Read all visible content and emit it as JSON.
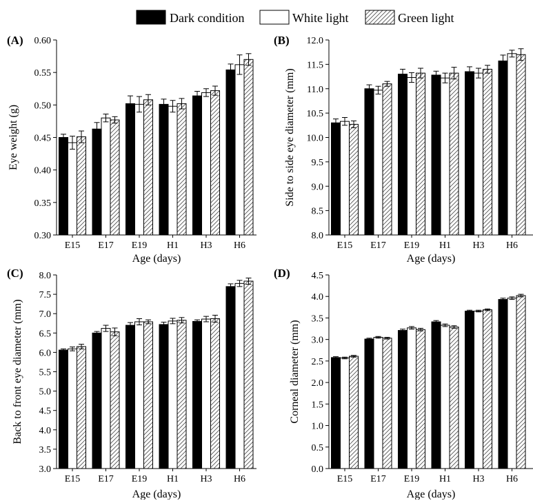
{
  "legend": {
    "items": [
      {
        "name": "Dark condition",
        "style": "solid"
      },
      {
        "name": "White light",
        "style": "hollow"
      },
      {
        "name": "Green light",
        "style": "hatched"
      }
    ]
  },
  "colors": {
    "dark": "#000000",
    "white": "#ffffff",
    "hatch": "#555555",
    "axis": "#000000"
  },
  "chart_data": [
    {
      "type": "bar",
      "panel_label": "(A)",
      "xlabel": "Age (days)",
      "ylabel": "Eye weight (g)",
      "categories": [
        "E15",
        "E17",
        "E19",
        "H1",
        "H3",
        "H6"
      ],
      "ylim": [
        0.3,
        0.6
      ],
      "yticks": [
        "0.30",
        "0.35",
        "0.40",
        "0.45",
        "0.50",
        "0.55",
        "0.60"
      ],
      "series": [
        {
          "name": "Dark condition",
          "values": [
            0.45,
            0.463,
            0.502,
            0.501,
            0.514,
            0.554
          ],
          "errors": [
            0.005,
            0.01,
            0.012,
            0.008,
            0.007,
            0.009
          ]
        },
        {
          "name": "White light",
          "values": [
            0.442,
            0.48,
            0.501,
            0.498,
            0.519,
            0.562
          ],
          "errors": [
            0.01,
            0.006,
            0.012,
            0.009,
            0.006,
            0.015
          ]
        },
        {
          "name": "Green light",
          "values": [
            0.451,
            0.477,
            0.508,
            0.502,
            0.522,
            0.57
          ],
          "errors": [
            0.009,
            0.005,
            0.008,
            0.008,
            0.007,
            0.009
          ]
        }
      ]
    },
    {
      "type": "bar",
      "panel_label": "(B)",
      "xlabel": "Age (days)",
      "ylabel": "Side to side eye diameter (mm)",
      "categories": [
        "E15",
        "E17",
        "E19",
        "H1",
        "H3",
        "H6"
      ],
      "ylim": [
        8.0,
        12.0
      ],
      "yticks": [
        "8.0",
        "8.5",
        "9.0",
        "9.5",
        "10.0",
        "10.5",
        "11.0",
        "11.5",
        "12.0"
      ],
      "series": [
        {
          "name": "Dark condition",
          "values": [
            10.3,
            11.0,
            11.3,
            11.28,
            11.35,
            11.57
          ],
          "errors": [
            0.08,
            0.08,
            0.1,
            0.08,
            0.1,
            0.12
          ]
        },
        {
          "name": "White light",
          "values": [
            10.33,
            10.97,
            11.23,
            11.22,
            11.32,
            11.72
          ],
          "errors": [
            0.08,
            0.08,
            0.1,
            0.1,
            0.1,
            0.07
          ]
        },
        {
          "name": "Green light",
          "values": [
            10.27,
            11.1,
            11.32,
            11.32,
            11.4,
            11.7
          ],
          "errors": [
            0.07,
            0.05,
            0.1,
            0.12,
            0.08,
            0.12
          ]
        }
      ]
    },
    {
      "type": "bar",
      "panel_label": "(C)",
      "xlabel": "Age (days)",
      "ylabel": "Back to front eye diameter (mm)",
      "categories": [
        "E15",
        "E17",
        "E19",
        "H1",
        "H3",
        "H6"
      ],
      "ylim": [
        3.0,
        8.0
      ],
      "yticks": [
        "3.0",
        "3.5",
        "4.0",
        "4.5",
        "5.0",
        "5.5",
        "6.0",
        "6.5",
        "7.0",
        "7.5",
        "8.0"
      ],
      "series": [
        {
          "name": "Dark condition",
          "values": [
            6.06,
            6.5,
            6.7,
            6.72,
            6.8,
            7.7
          ],
          "errors": [
            0.03,
            0.04,
            0.07,
            0.06,
            0.04,
            0.07
          ]
        },
        {
          "name": "White light",
          "values": [
            6.09,
            6.62,
            6.79,
            6.81,
            6.86,
            7.78
          ],
          "errors": [
            0.05,
            0.08,
            0.08,
            0.07,
            0.07,
            0.08
          ]
        },
        {
          "name": "Green light",
          "values": [
            6.15,
            6.53,
            6.79,
            6.83,
            6.87,
            7.84
          ],
          "errors": [
            0.06,
            0.1,
            0.05,
            0.07,
            0.09,
            0.08
          ]
        }
      ]
    },
    {
      "type": "bar",
      "panel_label": "(D)",
      "xlabel": "Age (days)",
      "ylabel": "Corneal diameter (mm)",
      "categories": [
        "E15",
        "E17",
        "E19",
        "H1",
        "H3",
        "H6"
      ],
      "ylim": [
        0.0,
        4.5
      ],
      "yticks": [
        "0.0",
        "0.5",
        "1.0",
        "1.5",
        "2.0",
        "2.5",
        "3.0",
        "3.5",
        "4.0",
        "4.5"
      ],
      "series": [
        {
          "name": "Dark condition",
          "values": [
            2.58,
            3.01,
            3.21,
            3.41,
            3.66,
            3.93
          ],
          "errors": [
            0.02,
            0.02,
            0.03,
            0.03,
            0.02,
            0.03
          ]
        },
        {
          "name": "White light",
          "values": [
            2.57,
            3.05,
            3.27,
            3.33,
            3.66,
            3.96
          ],
          "errors": [
            0.02,
            0.02,
            0.03,
            0.03,
            0.02,
            0.03
          ]
        },
        {
          "name": "Green light",
          "values": [
            2.61,
            3.03,
            3.23,
            3.29,
            3.69,
            4.02
          ],
          "errors": [
            0.02,
            0.02,
            0.03,
            0.03,
            0.02,
            0.03
          ]
        }
      ]
    }
  ]
}
